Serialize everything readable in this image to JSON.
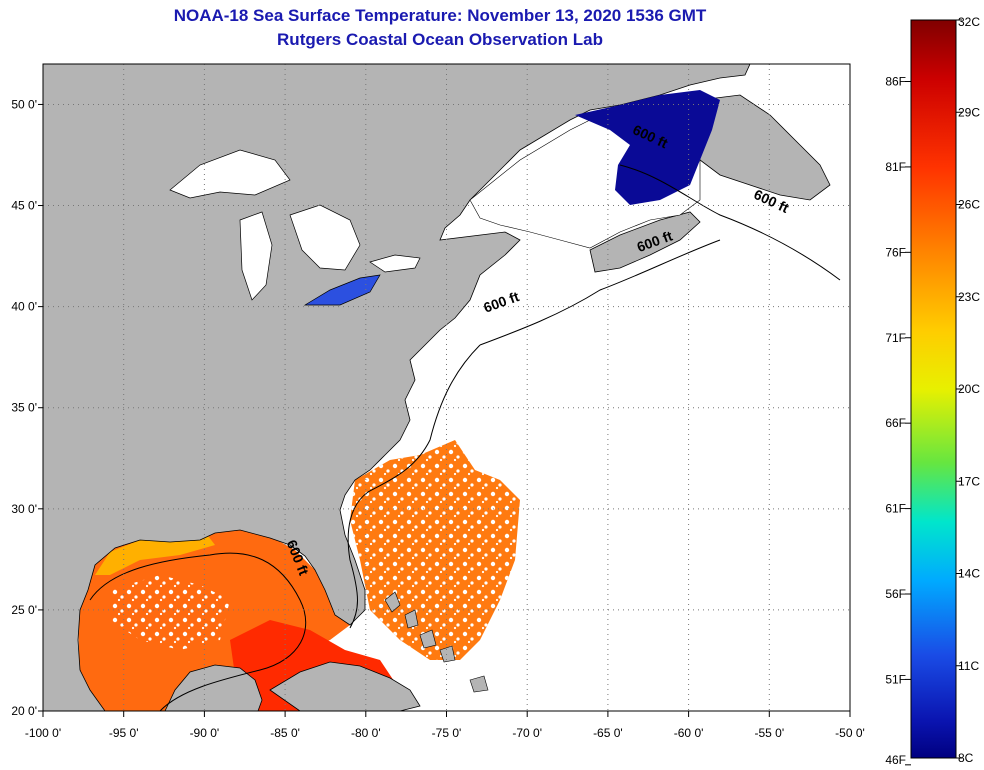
{
  "header": {
    "title": "NOAA-18 Sea Surface Temperature:  November 13, 2020 1536 GMT",
    "subtitle": "Rutgers Coastal Ocean Observation Lab"
  },
  "map": {
    "lon_range": [
      -100,
      -50
    ],
    "lat_range": [
      20,
      52
    ],
    "grid": "dotted",
    "x_ticks": [
      {
        "lon": -100,
        "label": "-100 0'"
      },
      {
        "lon": -95,
        "label": "-95 0'"
      },
      {
        "lon": -90,
        "label": "-90 0'"
      },
      {
        "lon": -85,
        "label": "-85 0'"
      },
      {
        "lon": -80,
        "label": "-80 0'"
      },
      {
        "lon": -75,
        "label": "-75 0'"
      },
      {
        "lon": -70,
        "label": "-70 0'"
      },
      {
        "lon": -65,
        "label": "-65 0'"
      },
      {
        "lon": -60,
        "label": "-60 0'"
      },
      {
        "lon": -55,
        "label": "-55 0'"
      },
      {
        "lon": -50,
        "label": "-50 0'"
      }
    ],
    "y_ticks": [
      {
        "lat": 50,
        "label": "50 0'"
      },
      {
        "lat": 45,
        "label": "45 0'"
      },
      {
        "lat": 40,
        "label": "40 0'"
      },
      {
        "lat": 35,
        "label": "35 0'"
      },
      {
        "lat": 30,
        "label": "30 0'"
      },
      {
        "lat": 25,
        "label": "25 0'"
      },
      {
        "lat": 20,
        "label": "20 0'"
      }
    ],
    "contour_labels": [
      {
        "text": "600 ft",
        "lon": -62.5,
        "lat": 48.2,
        "rotate": 25
      },
      {
        "text": "600 ft",
        "lon": -55.0,
        "lat": 45.0,
        "rotate": 25
      },
      {
        "text": "600 ft",
        "lon": -62.0,
        "lat": 43.0,
        "rotate": -20
      },
      {
        "text": "600 ft",
        "lon": -71.5,
        "lat": 40.0,
        "rotate": -20
      },
      {
        "text": "600 ft",
        "lon": -84.5,
        "lat": 27.5,
        "rotate": 68
      }
    ],
    "colors": {
      "land": "#b4b4b4",
      "ocean_nodata": "#ffffff",
      "cold": "#0a0a96",
      "warm": "#ff5a00"
    }
  },
  "colorbar": {
    "celsius_labels": [
      "32C",
      "29C",
      "26C",
      "23C",
      "20C",
      "17C",
      "14C",
      "11C",
      "8C"
    ],
    "fahrenheit_labels": [
      "86F",
      "81F",
      "76F",
      "71F",
      "66F",
      "61F",
      "56F",
      "51F",
      "46F"
    ],
    "min_c": 8,
    "max_c": 32
  }
}
